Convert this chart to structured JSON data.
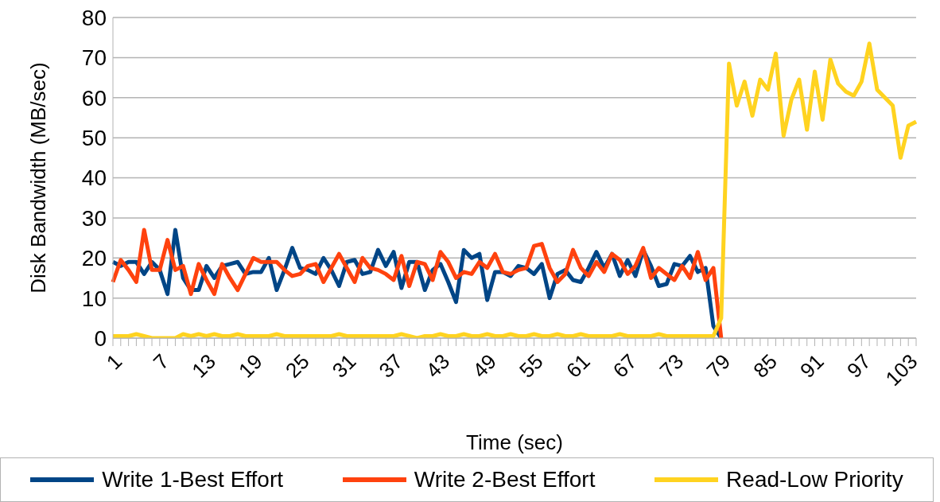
{
  "chart_data": {
    "type": "line",
    "xlabel": "Time (sec)",
    "ylabel": "Disk Bandwidth (MB/sec)",
    "categories": [
      "1",
      null,
      null,
      null,
      null,
      null,
      "7",
      null,
      null,
      null,
      null,
      null,
      "13",
      null,
      null,
      null,
      null,
      null,
      "19",
      null,
      null,
      null,
      null,
      null,
      "25",
      null,
      null,
      null,
      null,
      null,
      "31",
      null,
      null,
      null,
      null,
      null,
      "37",
      null,
      null,
      null,
      null,
      null,
      "43",
      null,
      null,
      null,
      null,
      null,
      "49",
      null,
      null,
      null,
      null,
      null,
      "55",
      null,
      null,
      null,
      null,
      null,
      "61",
      null,
      null,
      null,
      null,
      null,
      "67",
      null,
      null,
      null,
      null,
      null,
      "73",
      null,
      null,
      null,
      null,
      null,
      "79",
      null,
      null,
      null,
      null,
      null,
      "85",
      null,
      null,
      null,
      null,
      null,
      "91",
      null,
      null,
      null,
      null,
      null,
      "97",
      null,
      null,
      null,
      null,
      null,
      "103",
      null
    ],
    "ylim": [
      0,
      80
    ],
    "yticks": [
      0,
      10,
      20,
      30,
      40,
      50,
      60,
      70,
      80
    ],
    "grid": "y",
    "legend": "bottom",
    "marker": "none",
    "line_style": "solid",
    "series": [
      {
        "name": "Write 1-Best Effort",
        "color": "#004586",
        "values": [
          19,
          18,
          19,
          19,
          16,
          19,
          17,
          11,
          27,
          15,
          12,
          12,
          18,
          15,
          18,
          18.5,
          19,
          16,
          16.5,
          16.5,
          20,
          12,
          17,
          22.5,
          17.5,
          17,
          16,
          20,
          17,
          13,
          19,
          19.5,
          16,
          16.5,
          22,
          18,
          21.5,
          12.5,
          19,
          19,
          12,
          17,
          18.5,
          14,
          9,
          22,
          20,
          21,
          9.5,
          16.5,
          16.5,
          15.5,
          18,
          17.5,
          16,
          18.5,
          10,
          16,
          17,
          14.5,
          14,
          17.5,
          21.5,
          17.5,
          21,
          15.5,
          19.5,
          15.5,
          22,
          18,
          13,
          13.5,
          18.5,
          18,
          20.5,
          16.5,
          17.5,
          3,
          0,
          null,
          null,
          null,
          null,
          null,
          null,
          null,
          null,
          null,
          null,
          null,
          null,
          null,
          null,
          null,
          null,
          null,
          null,
          null,
          null,
          null,
          null,
          null,
          null,
          null
        ]
      },
      {
        "name": "Write 2-Best Effort",
        "color": "#ff420e",
        "values": [
          14,
          19.5,
          17,
          14,
          27,
          17,
          17,
          24.5,
          17,
          18,
          11,
          18.5,
          14.5,
          11,
          18.5,
          15,
          12,
          16,
          20,
          19,
          19,
          19,
          17,
          15.5,
          16,
          18,
          18.5,
          14,
          17.5,
          21,
          17.5,
          14,
          20,
          17.5,
          17,
          16,
          14.5,
          20.5,
          13,
          19,
          18.5,
          14.5,
          21.5,
          19,
          15,
          16.5,
          16,
          19,
          17.5,
          21,
          16.5,
          16,
          17,
          17.5,
          23,
          23.5,
          17.5,
          14,
          16,
          22,
          17.5,
          15.5,
          19,
          16.5,
          21,
          19.5,
          16,
          18,
          22.5,
          15,
          17.5,
          16,
          14.5,
          18,
          15,
          21.5,
          14.5,
          17.5,
          0,
          null,
          null,
          null,
          null,
          null,
          null,
          null,
          null,
          null,
          null,
          null,
          null,
          null,
          null,
          null,
          null,
          null,
          null,
          null,
          null,
          null,
          null,
          null,
          null,
          null
        ]
      },
      {
        "name": "Read-Low Priority",
        "color": "#ffd320",
        "values": [
          0.5,
          0.5,
          0.5,
          1,
          0.5,
          0,
          0,
          0,
          0,
          1,
          0.5,
          1,
          0.5,
          1,
          0.5,
          0.5,
          1,
          0.5,
          0.5,
          0.5,
          0.5,
          1,
          0.5,
          0.5,
          0.5,
          0.5,
          0.5,
          0.5,
          0.5,
          1,
          0.5,
          0.5,
          0.5,
          0.5,
          0.5,
          0.5,
          0.5,
          1,
          0.5,
          0,
          0.5,
          0.5,
          1,
          0.5,
          0.5,
          1,
          0.5,
          0.5,
          1,
          0.5,
          0.5,
          1,
          0.5,
          0.5,
          1,
          0.5,
          0.5,
          1,
          0.5,
          0.5,
          1,
          0.5,
          0.5,
          0.5,
          0.5,
          1,
          0.5,
          0.5,
          0.5,
          0.5,
          1,
          0.5,
          0.5,
          0.5,
          0.5,
          0.5,
          0.5,
          0.5,
          5,
          68.5,
          58,
          64,
          55.5,
          64.5,
          62,
          71,
          50.5,
          59.5,
          64.5,
          52,
          66.5,
          54.5,
          69.5,
          63.5,
          61.5,
          60.5,
          64,
          73.5,
          62,
          60,
          58,
          45,
          53,
          54
        ]
      }
    ]
  }
}
